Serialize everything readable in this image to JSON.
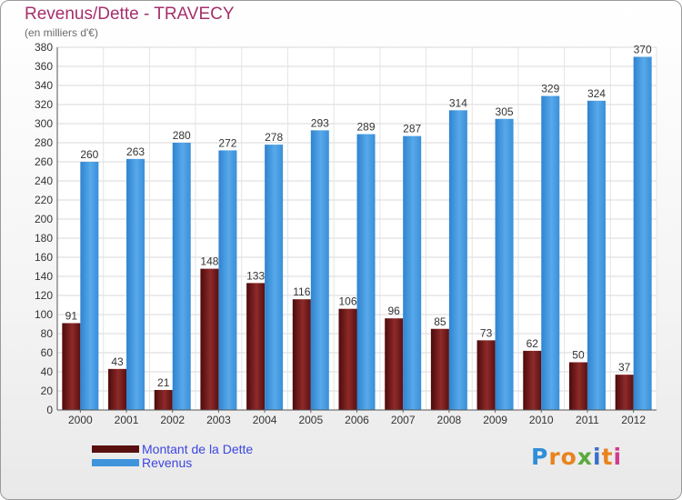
{
  "title": "Revenus/Dette - TRAVECY",
  "subtitle": "(en milliers d'€)",
  "brand": {
    "text": "Proxiti",
    "letter_colors": [
      "#2e8ed8",
      "#e8831e",
      "#e8831e",
      "#5aaa3c",
      "#3a6fc7",
      "#e8831e",
      "#d23c8c"
    ]
  },
  "chart_data": {
    "type": "bar",
    "categories": [
      "2000",
      "2001",
      "2002",
      "2003",
      "2004",
      "2005",
      "2006",
      "2007",
      "2008",
      "2009",
      "2010",
      "2011",
      "2012"
    ],
    "series": [
      {
        "name": "Montant de la Dette",
        "color": "#6b1515",
        "values": [
          91,
          43,
          21,
          148,
          133,
          116,
          106,
          96,
          85,
          73,
          62,
          50,
          37
        ]
      },
      {
        "name": "Revenus",
        "color": "#3f94dc",
        "values": [
          260,
          263,
          280,
          272,
          278,
          293,
          289,
          287,
          314,
          305,
          329,
          324,
          370
        ]
      }
    ],
    "ylim": [
      0,
      380
    ],
    "ytick_step": 20,
    "grid": true,
    "data_labels": true,
    "legend": "bottom-left",
    "xlabel": "",
    "ylabel": ""
  }
}
